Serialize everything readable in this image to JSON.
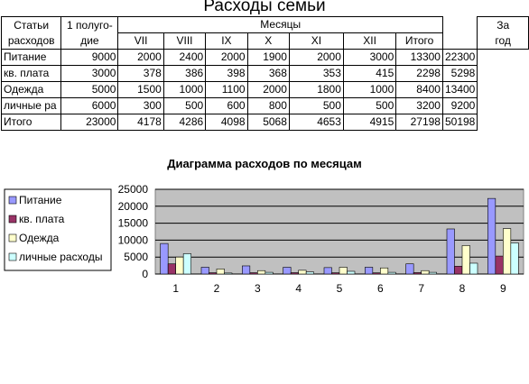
{
  "page_title": "Расходы семьи",
  "table": {
    "h_articles_line1": "Статьи",
    "h_articles_line2": "расходов",
    "h_half_line1": "1 полуго-",
    "h_half_line2": "дие",
    "h_months": "Месяцы",
    "h_year_line1": "За",
    "h_year_line2": "год",
    "months": [
      "VII",
      "VIII",
      "IX",
      "X",
      "XI",
      "XII",
      "Итого"
    ],
    "rows": [
      {
        "label": "Питание",
        "half": "9000",
        "m": [
          "2000",
          "2400",
          "2000",
          "1900",
          "2000",
          "3000",
          "13300"
        ],
        "year": "22300"
      },
      {
        "label": "кв. плата",
        "half": "3000",
        "m": [
          "378",
          "386",
          "398",
          "368",
          "353",
          "415",
          "2298"
        ],
        "year": "5298"
      },
      {
        "label": "Одежда",
        "half": "5000",
        "m": [
          "1500",
          "1000",
          "1100",
          "2000",
          "1800",
          "1000",
          "8400"
        ],
        "year": "13400"
      },
      {
        "label": "личные ра",
        "half": "6000",
        "m": [
          "300",
          "500",
          "600",
          "800",
          "500",
          "500",
          "3200"
        ],
        "year": "9200"
      },
      {
        "label": "Итого",
        "half": "23000",
        "m": [
          "4178",
          "4286",
          "4098",
          "5068",
          "4653",
          "4915",
          "27198"
        ],
        "year": "50198"
      }
    ]
  },
  "chart_data": {
    "type": "bar",
    "title": "Диаграмма расходов по месяцам",
    "categories": [
      "1",
      "2",
      "3",
      "4",
      "5",
      "6",
      "7",
      "8",
      "9"
    ],
    "ylim": [
      0,
      25000
    ],
    "yticks": [
      "0",
      "5000",
      "10000",
      "15000",
      "20000",
      "25000"
    ],
    "grid": true,
    "legend_position": "left",
    "series": [
      {
        "name": "Питание",
        "color": "#9999ff",
        "values": [
          9000,
          2000,
          2400,
          2000,
          1900,
          2000,
          3000,
          13300,
          22300
        ]
      },
      {
        "name": "кв. плата",
        "color": "#993366",
        "values": [
          3000,
          378,
          386,
          398,
          368,
          353,
          415,
          2298,
          5298
        ]
      },
      {
        "name": "Одежда",
        "color": "#ffffcc",
        "values": [
          5000,
          1500,
          1000,
          1100,
          2000,
          1800,
          1000,
          8400,
          13400
        ]
      },
      {
        "name": "личные расходы",
        "color": "#ccffff",
        "values": [
          6000,
          300,
          500,
          600,
          800,
          500,
          500,
          3200,
          9200
        ]
      }
    ],
    "plot_bg": "#c0c0c0"
  }
}
